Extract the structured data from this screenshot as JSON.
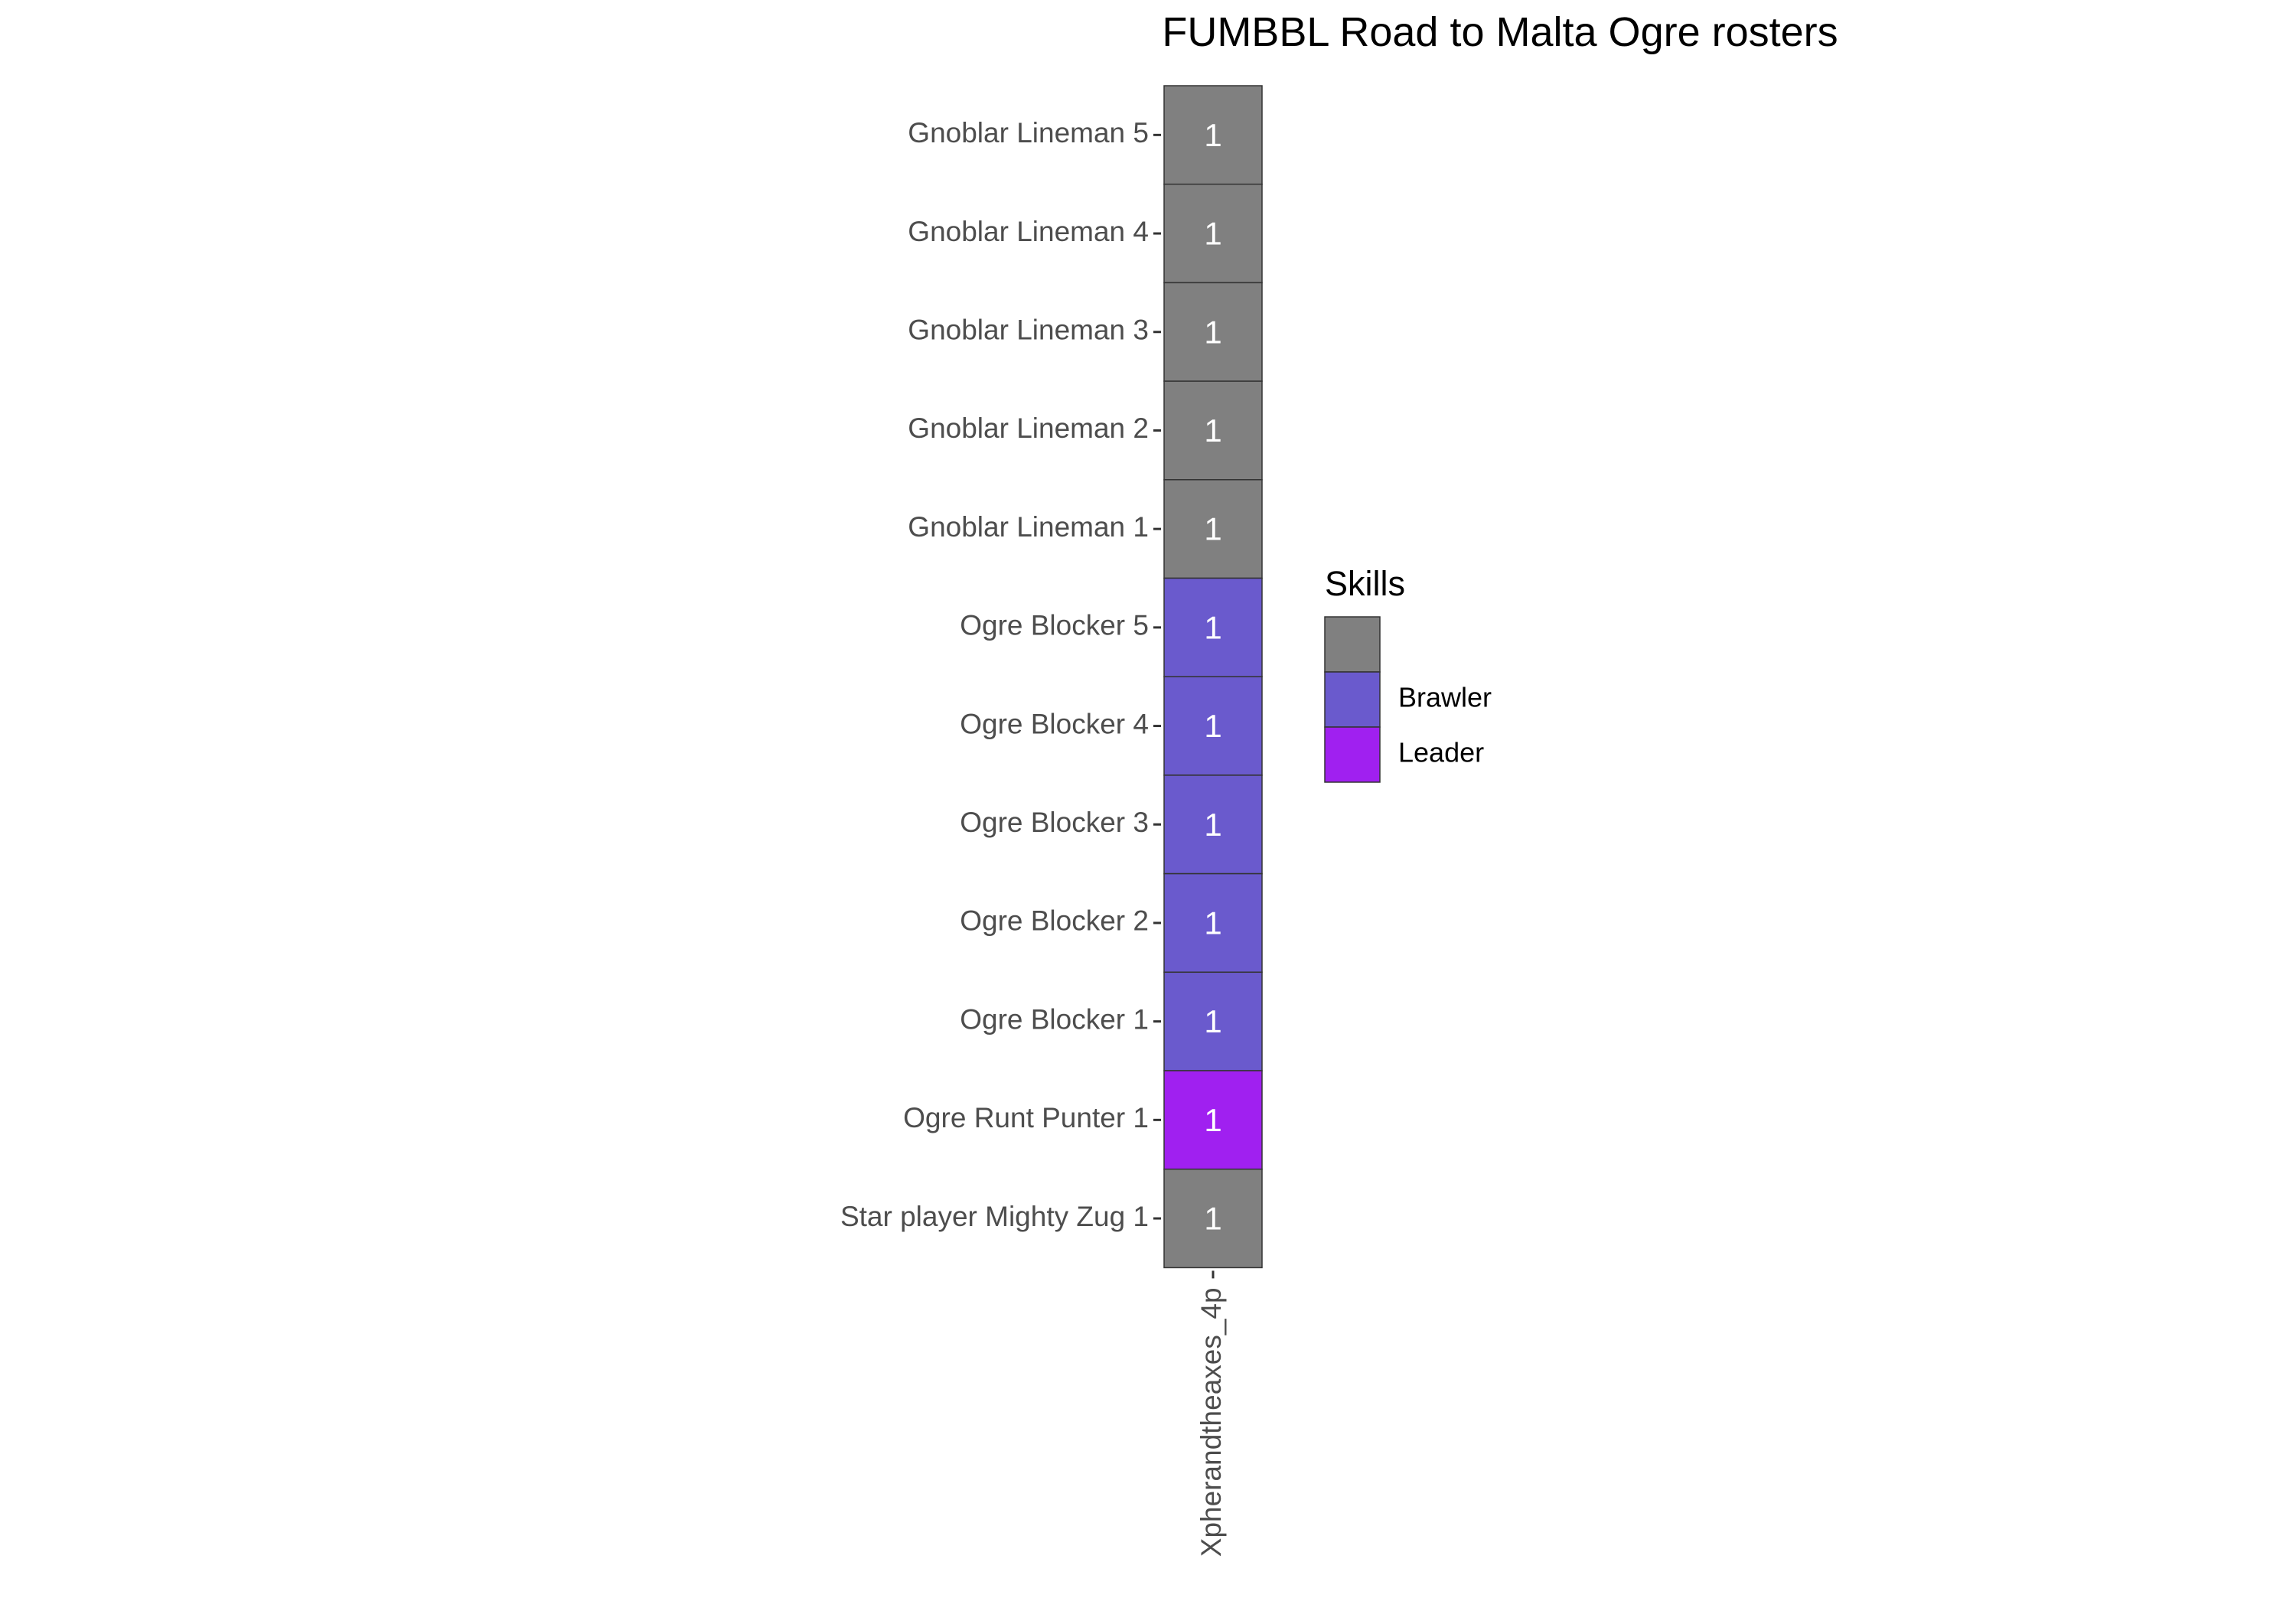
{
  "chart_data": {
    "type": "heatmap",
    "title": "FUMBBL Road to Malta Ogre rosters",
    "xlabel": "",
    "ylabel": "",
    "x_categories": [
      "Xpherandtheaxes_4p"
    ],
    "y_categories": [
      "Gnoblar Lineman 5",
      "Gnoblar Lineman 4",
      "Gnoblar Lineman 3",
      "Gnoblar Lineman 2",
      "Gnoblar Lineman 1",
      "Ogre Blocker 5",
      "Ogre Blocker 4",
      "Ogre Blocker 3",
      "Ogre Blocker 2",
      "Ogre Blocker 1",
      "Ogre Runt Punter 1",
      "Star player Mighty Zug 1"
    ],
    "cells": [
      {
        "x": "Xpherandtheaxes_4p",
        "y": "Gnoblar Lineman 5",
        "value": 1,
        "skill": ""
      },
      {
        "x": "Xpherandtheaxes_4p",
        "y": "Gnoblar Lineman 4",
        "value": 1,
        "skill": ""
      },
      {
        "x": "Xpherandtheaxes_4p",
        "y": "Gnoblar Lineman 3",
        "value": 1,
        "skill": ""
      },
      {
        "x": "Xpherandtheaxes_4p",
        "y": "Gnoblar Lineman 2",
        "value": 1,
        "skill": ""
      },
      {
        "x": "Xpherandtheaxes_4p",
        "y": "Gnoblar Lineman 1",
        "value": 1,
        "skill": ""
      },
      {
        "x": "Xpherandtheaxes_4p",
        "y": "Ogre Blocker 5",
        "value": 1,
        "skill": "Brawler"
      },
      {
        "x": "Xpherandtheaxes_4p",
        "y": "Ogre Blocker 4",
        "value": 1,
        "skill": "Brawler"
      },
      {
        "x": "Xpherandtheaxes_4p",
        "y": "Ogre Blocker 3",
        "value": 1,
        "skill": "Brawler"
      },
      {
        "x": "Xpherandtheaxes_4p",
        "y": "Ogre Blocker 2",
        "value": 1,
        "skill": "Brawler"
      },
      {
        "x": "Xpherandtheaxes_4p",
        "y": "Ogre Blocker 1",
        "value": 1,
        "skill": "Brawler"
      },
      {
        "x": "Xpherandtheaxes_4p",
        "y": "Ogre Runt Punter 1",
        "value": 1,
        "skill": "Leader"
      },
      {
        "x": "Xpherandtheaxes_4p",
        "y": "Star player Mighty Zug 1",
        "value": 1,
        "skill": ""
      }
    ],
    "legend": {
      "title": "Skills",
      "placement": "right",
      "entries": [
        {
          "label": "",
          "color": "#808080"
        },
        {
          "label": "Brawler",
          "color": "#6a5acd"
        },
        {
          "label": "Leader",
          "color": "#a020f0"
        }
      ]
    },
    "grid": false
  }
}
